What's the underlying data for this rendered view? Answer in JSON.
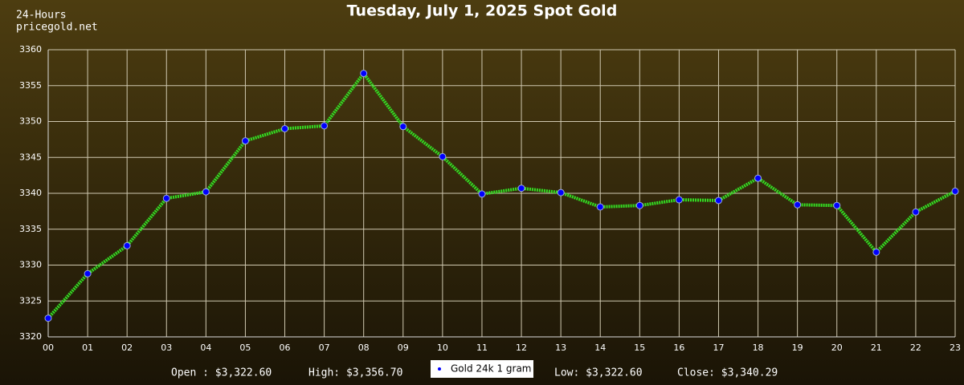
{
  "chart_data": {
    "type": "line",
    "title": "Tuesday, July 1, 2025 Spot Gold",
    "corner_text": [
      "24-Hours",
      "pricegold.net"
    ],
    "categories": [
      "00",
      "01",
      "02",
      "03",
      "04",
      "05",
      "06",
      "07",
      "08",
      "09",
      "10",
      "11",
      "12",
      "13",
      "14",
      "15",
      "16",
      "17",
      "18",
      "19",
      "20",
      "21",
      "22",
      "23"
    ],
    "series": [
      {
        "name": "Gold 24k 1 gram",
        "color": "#33dd22",
        "marker_color": "#0000ff",
        "values": [
          3322.6,
          3328.8,
          3332.7,
          3339.3,
          3340.2,
          3347.3,
          3349.0,
          3349.4,
          3356.7,
          3349.3,
          3345.1,
          3339.9,
          3340.7,
          3340.1,
          3338.1,
          3338.3,
          3339.1,
          3339.0,
          3342.1,
          3338.4,
          3338.3,
          3331.8,
          3337.4,
          3340.29
        ]
      }
    ],
    "ylim": [
      3320,
      3360
    ],
    "yticks": [
      3320,
      3325,
      3330,
      3335,
      3340,
      3345,
      3350,
      3355,
      3360
    ],
    "grid": true,
    "annotations": [
      "Open : $3,322.60",
      "High: $3,356.70",
      "Low: $3,322.60",
      "Close: $3,340.29"
    ]
  }
}
